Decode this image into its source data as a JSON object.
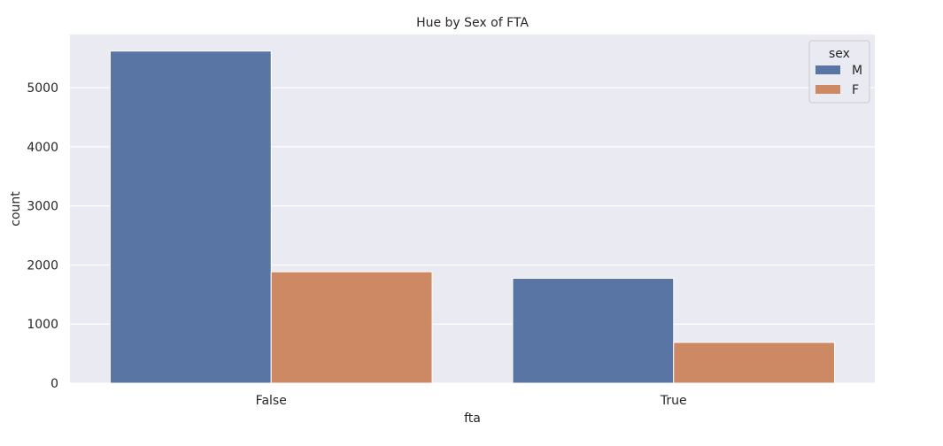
{
  "chart_data": {
    "type": "bar",
    "title": "Hue by Sex of FTA",
    "xlabel": "fta",
    "ylabel": "count",
    "categories": [
      "False",
      "True"
    ],
    "series": [
      {
        "name": "M",
        "values": [
          5620,
          1775
        ],
        "color": "#5875a4"
      },
      {
        "name": "F",
        "values": [
          1885,
          690
        ],
        "color": "#cc8963"
      }
    ],
    "ylim": [
      0,
      5900
    ],
    "yticks": [
      0,
      1000,
      2000,
      3000,
      4000,
      5000
    ],
    "grid": true,
    "legend": {
      "title": "sex",
      "placement": "top-right"
    },
    "background_color": "#eaeaf2"
  }
}
